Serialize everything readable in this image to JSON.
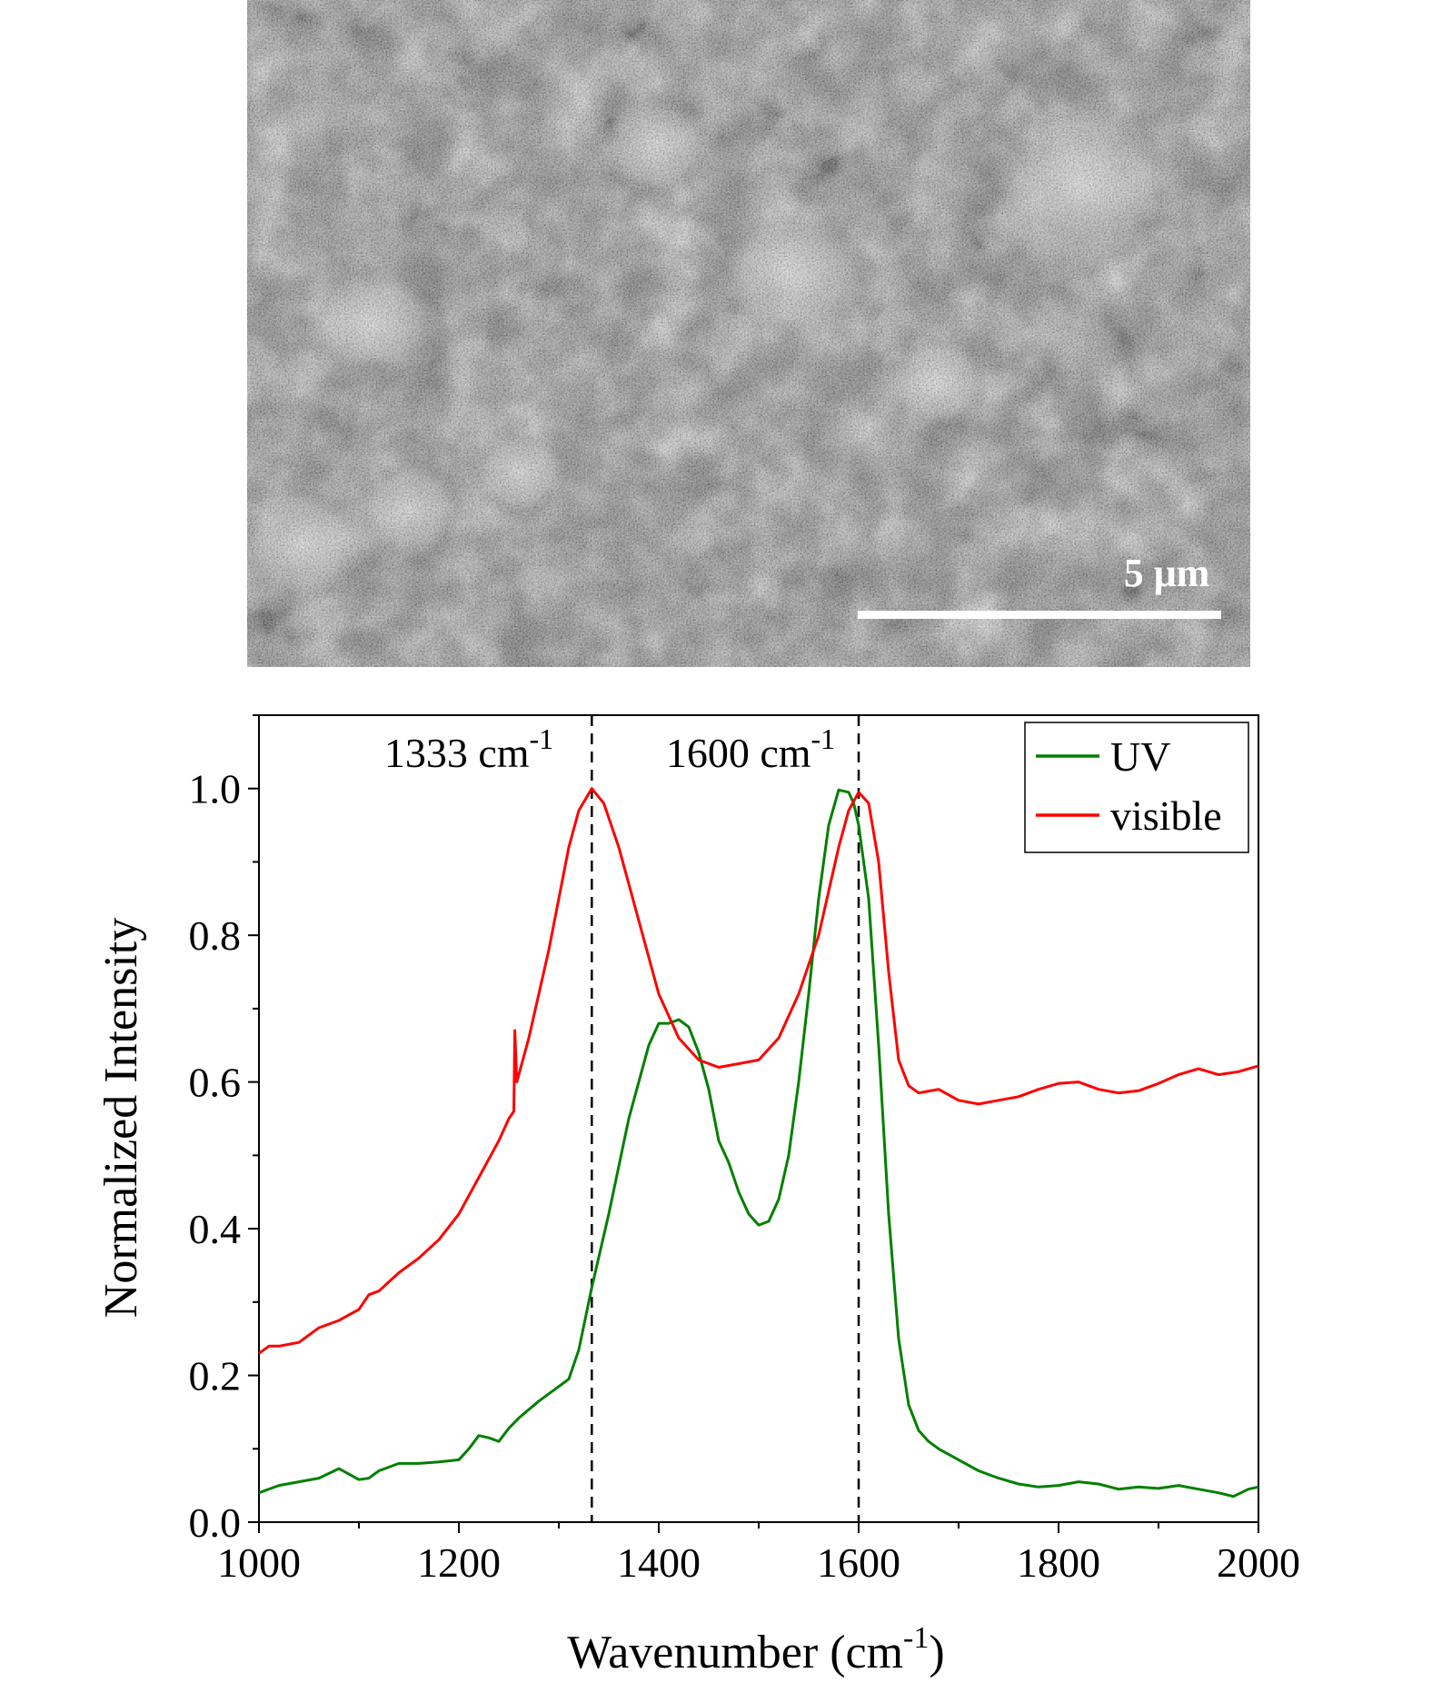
{
  "micrograph": {
    "scale_bar_label": "5 μm"
  },
  "chart_data": {
    "type": "line",
    "xlabel": "Wavenumber (cm",
    "xlabel_superscript": "-1",
    "xlabel_suffix": ")",
    "ylabel": "Normalized Intensity",
    "xlim": [
      1000,
      2000
    ],
    "ylim": [
      0.0,
      1.1
    ],
    "xticks": [
      1000,
      1200,
      1400,
      1600,
      1800,
      2000
    ],
    "xtick_labels": [
      "1000",
      "1200",
      "1400",
      "1600",
      "1800",
      "2000"
    ],
    "yticks": [
      0.0,
      0.2,
      0.4,
      0.6,
      0.8,
      1.0
    ],
    "ytick_labels": [
      "0.0",
      "0.2",
      "0.4",
      "0.6",
      "0.8",
      "1.0"
    ],
    "grid": false,
    "legend_position": "top-right",
    "annotations": [
      {
        "x": 1333,
        "text": "1333 cm",
        "superscript": "-1",
        "style": "dashed-vertical-line"
      },
      {
        "x": 1600,
        "text": "1600 cm",
        "superscript": "-1",
        "style": "dashed-vertical-line"
      }
    ],
    "series": [
      {
        "name": "UV",
        "color": "#008000",
        "x": [
          1000,
          1020,
          1040,
          1060,
          1080,
          1100,
          1110,
          1120,
          1140,
          1160,
          1180,
          1200,
          1210,
          1220,
          1230,
          1240,
          1250,
          1260,
          1280,
          1300,
          1310,
          1320,
          1333,
          1350,
          1370,
          1390,
          1400,
          1410,
          1420,
          1430,
          1440,
          1450,
          1460,
          1470,
          1480,
          1490,
          1500,
          1510,
          1520,
          1530,
          1540,
          1550,
          1560,
          1570,
          1580,
          1590,
          1595,
          1600,
          1610,
          1620,
          1630,
          1640,
          1650,
          1660,
          1670,
          1680,
          1700,
          1720,
          1740,
          1760,
          1780,
          1800,
          1820,
          1840,
          1860,
          1880,
          1900,
          1920,
          1940,
          1960,
          1975,
          1990,
          2000
        ],
        "values": [
          0.04,
          0.05,
          0.055,
          0.06,
          0.073,
          0.058,
          0.06,
          0.07,
          0.08,
          0.08,
          0.082,
          0.085,
          0.1,
          0.118,
          0.115,
          0.11,
          0.128,
          0.142,
          0.165,
          0.185,
          0.195,
          0.235,
          0.32,
          0.42,
          0.55,
          0.65,
          0.68,
          0.68,
          0.685,
          0.675,
          0.64,
          0.59,
          0.52,
          0.49,
          0.45,
          0.42,
          0.405,
          0.41,
          0.44,
          0.5,
          0.6,
          0.72,
          0.85,
          0.95,
          0.998,
          0.995,
          0.98,
          0.95,
          0.85,
          0.65,
          0.42,
          0.25,
          0.16,
          0.125,
          0.11,
          0.1,
          0.085,
          0.07,
          0.06,
          0.052,
          0.048,
          0.05,
          0.055,
          0.052,
          0.045,
          0.048,
          0.046,
          0.05,
          0.045,
          0.04,
          0.035,
          0.045,
          0.048
        ]
      },
      {
        "name": "visible",
        "color": "#ff0000",
        "x": [
          1000,
          1005,
          1010,
          1020,
          1040,
          1060,
          1080,
          1100,
          1110,
          1120,
          1140,
          1160,
          1180,
          1200,
          1220,
          1240,
          1250,
          1255,
          1256,
          1258,
          1270,
          1290,
          1310,
          1320,
          1333,
          1345,
          1360,
          1380,
          1400,
          1420,
          1440,
          1460,
          1480,
          1500,
          1520,
          1540,
          1560,
          1570,
          1580,
          1590,
          1600,
          1610,
          1620,
          1630,
          1640,
          1650,
          1660,
          1680,
          1700,
          1720,
          1740,
          1760,
          1780,
          1800,
          1820,
          1840,
          1860,
          1880,
          1900,
          1920,
          1940,
          1960,
          1980,
          2000
        ],
        "values": [
          0.23,
          0.235,
          0.24,
          0.24,
          0.245,
          0.265,
          0.275,
          0.29,
          0.31,
          0.315,
          0.34,
          0.36,
          0.385,
          0.42,
          0.47,
          0.52,
          0.55,
          0.56,
          0.67,
          0.6,
          0.66,
          0.78,
          0.92,
          0.97,
          1.0,
          0.98,
          0.92,
          0.82,
          0.72,
          0.66,
          0.63,
          0.62,
          0.625,
          0.63,
          0.66,
          0.72,
          0.8,
          0.86,
          0.92,
          0.97,
          0.995,
          0.98,
          0.9,
          0.75,
          0.63,
          0.595,
          0.585,
          0.59,
          0.575,
          0.57,
          0.575,
          0.58,
          0.59,
          0.598,
          0.6,
          0.59,
          0.585,
          0.588,
          0.598,
          0.61,
          0.618,
          0.61,
          0.614,
          0.622
        ]
      }
    ]
  }
}
